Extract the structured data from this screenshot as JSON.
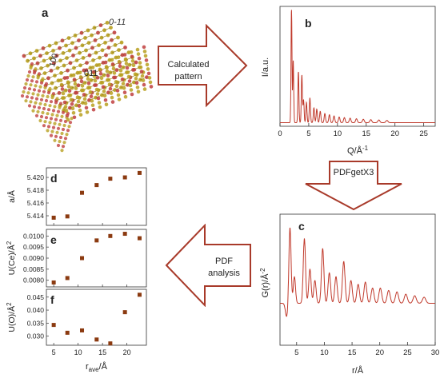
{
  "panels": {
    "a": {
      "letter": "a",
      "face_labels": [
        "0-11",
        "100",
        "011"
      ]
    },
    "b": {
      "letter": "b"
    },
    "c": {
      "letter": "c"
    },
    "d": {
      "letter": "d"
    },
    "e": {
      "letter": "e"
    },
    "f": {
      "letter": "f"
    }
  },
  "arrows": {
    "calculated": {
      "line1": "Calculated",
      "line2": "pattern"
    },
    "pdfget": {
      "label": "PDFgetX3"
    },
    "pdf_analysis": {
      "line1": "PDF",
      "line2": "analysis"
    }
  },
  "colors": {
    "arrow_stroke": "#a83a2a",
    "curve": "#c0392b",
    "marker": "#8b3a10",
    "crystal_gold": "#b8a020",
    "crystal_red": "#c04040"
  },
  "chart_data": [
    {
      "id": "b",
      "type": "line",
      "xlabel": "Q/Å",
      "xlabel_sup": "-1",
      "ylabel": "I/a.u.",
      "xlim": [
        0,
        27
      ],
      "xticks": [
        "0",
        "5",
        "10",
        "15",
        "20",
        "25"
      ],
      "peaks": [
        [
          2.0,
          1.0
        ],
        [
          2.3,
          0.55
        ],
        [
          3.2,
          0.45
        ],
        [
          3.8,
          0.42
        ],
        [
          4.1,
          0.2
        ],
        [
          4.6,
          0.18
        ],
        [
          5.2,
          0.22
        ],
        [
          5.9,
          0.13
        ],
        [
          6.4,
          0.12
        ],
        [
          7.0,
          0.1
        ],
        [
          7.8,
          0.08
        ],
        [
          8.6,
          0.07
        ],
        [
          9.4,
          0.06
        ],
        [
          10.3,
          0.05
        ],
        [
          11.2,
          0.045
        ],
        [
          12.2,
          0.04
        ],
        [
          13.3,
          0.035
        ],
        [
          14.5,
          0.03
        ],
        [
          15.8,
          0.027
        ],
        [
          17.2,
          0.024
        ],
        [
          18.6,
          0.02
        ]
      ]
    },
    {
      "id": "c",
      "type": "line",
      "xlabel": "r/Å",
      "ylabel": "G(r)/Å",
      "ylabel_sup": "-2",
      "xlim": [
        2,
        30
      ],
      "xticks": [
        "5",
        "10",
        "15",
        "20",
        "25",
        "30"
      ],
      "peaks": [
        [
          3.8,
          1.0
        ],
        [
          4.6,
          0.35
        ],
        [
          6.4,
          0.85
        ],
        [
          7.4,
          0.45
        ],
        [
          8.3,
          0.3
        ],
        [
          9.7,
          0.72
        ],
        [
          10.9,
          0.4
        ],
        [
          12.1,
          0.35
        ],
        [
          13.5,
          0.55
        ],
        [
          14.8,
          0.3
        ],
        [
          16.1,
          0.25
        ],
        [
          17.4,
          0.28
        ],
        [
          18.7,
          0.2
        ],
        [
          20.1,
          0.2
        ],
        [
          21.6,
          0.17
        ],
        [
          23.1,
          0.15
        ],
        [
          24.7,
          0.12
        ],
        [
          26.3,
          0.1
        ],
        [
          28.0,
          0.08
        ]
      ]
    },
    {
      "id": "d",
      "type": "scatter",
      "ylabel": "a/Å",
      "yticks": [
        "5.414",
        "5.416",
        "5.418",
        "5.420"
      ],
      "ylim": [
        5.4125,
        5.4215
      ],
      "xlim": [
        3.5,
        24
      ],
      "x": [
        5.0,
        7.8,
        10.8,
        13.8,
        16.6,
        19.6,
        22.6
      ],
      "y": [
        5.4137,
        5.4139,
        5.4176,
        5.4188,
        5.4198,
        5.42,
        5.4207
      ]
    },
    {
      "id": "e",
      "type": "scatter",
      "ylabel": "U(Ce)/Å",
      "ylabel_sup": "2",
      "yticks": [
        "0.0080",
        "0.0085",
        "0.0090",
        "0.0095",
        "0.0100"
      ],
      "ylim": [
        0.0077,
        0.0103
      ],
      "xlim": [
        3.5,
        24
      ],
      "x": [
        5.0,
        7.8,
        10.8,
        13.8,
        16.6,
        19.6,
        22.6
      ],
      "y": [
        0.0079,
        0.0081,
        0.009,
        0.0098,
        0.01,
        0.0101,
        0.0099
      ]
    },
    {
      "id": "f",
      "type": "scatter",
      "ylabel": "U(O)/Å",
      "ylabel_sup": "2",
      "xlabel": "r",
      "xlabel_sub": "ave",
      "xlabel_suffix": "/Å",
      "yticks": [
        "0.030",
        "0.035",
        "0.040",
        "0.045"
      ],
      "ylim": [
        0.0265,
        0.048
      ],
      "xlim": [
        3.5,
        24
      ],
      "xticks": [
        "5",
        "10",
        "15",
        "20"
      ],
      "x": [
        5.0,
        7.8,
        10.8,
        13.8,
        16.6,
        19.6,
        22.6
      ],
      "y": [
        0.0343,
        0.0313,
        0.0322,
        0.0287,
        0.0272,
        0.0392,
        0.0459
      ]
    }
  ]
}
